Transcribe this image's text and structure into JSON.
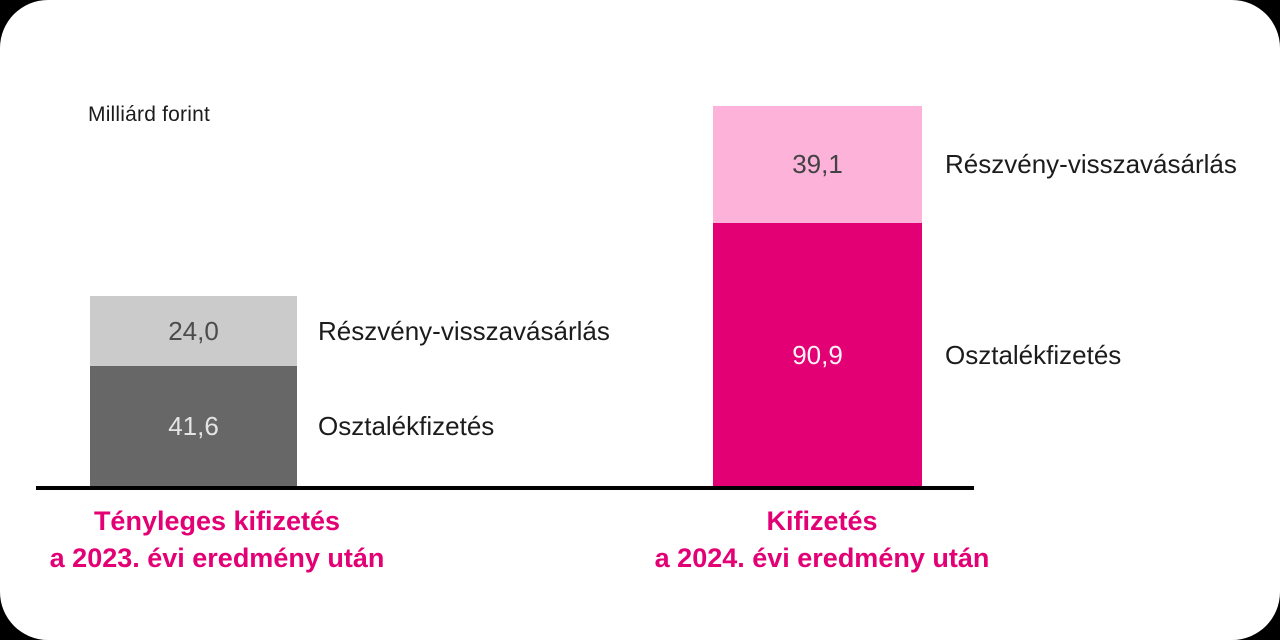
{
  "unit_label": "Milliárd forint",
  "colors": {
    "background": "#ffffff",
    "outer_background": "#000000",
    "magenta": "#e20074",
    "light_pink": "#fcb2d9",
    "dark_gray": "#676767",
    "light_gray": "#cbcbcb",
    "axis_black": "#000000",
    "caption_magenta": "#e20074"
  },
  "bars": [
    {
      "name": "2023",
      "caption_line1": "Tényleges kifizetés",
      "caption_line2": "a 2023. évi eredmény után",
      "buyback": {
        "value_label": "24,0",
        "side_label": "Részvény-visszavásárlás"
      },
      "dividend": {
        "value_label": "41,6",
        "side_label": "Osztalékfizetés"
      }
    },
    {
      "name": "2024",
      "caption_line1": "Kifizetés",
      "caption_line2": "a 2024. évi eredmény után",
      "buyback": {
        "value_label": "39,1",
        "side_label": "Részvény-visszavásárlás"
      },
      "dividend": {
        "value_label": "90,9",
        "side_label": "Osztalékfizetés"
      }
    }
  ],
  "chart_data": {
    "type": "bar",
    "stacked": true,
    "title": "",
    "unit": "Milliárd forint",
    "categories": [
      "Tényleges kifizetés a 2023. évi eredmény után",
      "Kifizetés a 2024. évi eredmény után"
    ],
    "series": [
      {
        "name": "Osztalékfizetés",
        "values": [
          41.6,
          90.9
        ],
        "colors": [
          "#676767",
          "#e20074"
        ]
      },
      {
        "name": "Részvény-visszavásárlás",
        "values": [
          24.0,
          39.1
        ],
        "colors": [
          "#cbcbcb",
          "#fcb2d9"
        ]
      }
    ],
    "totals": [
      65.6,
      130.0
    ],
    "ylim": [
      0,
      140
    ],
    "grid": false,
    "axes_visible": "baseline-only",
    "legend_position": "labels-beside-bars",
    "value_label_format": "comma-decimal"
  }
}
